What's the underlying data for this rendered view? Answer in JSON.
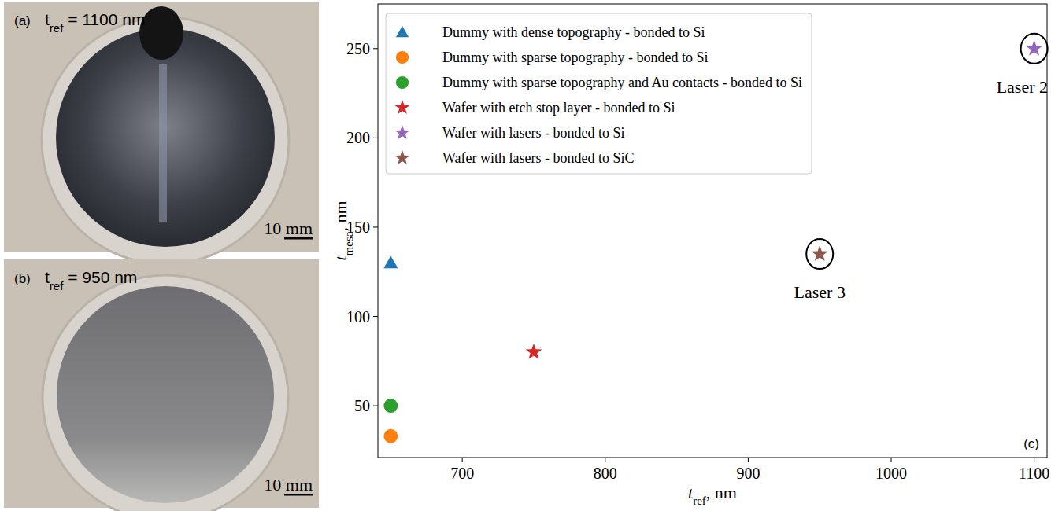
{
  "chart_data": {
    "type": "scatter",
    "x_label": {
      "main": "t",
      "sub": "ref",
      "rest": ", nm"
    },
    "y_label": {
      "main": "t",
      "sub": "mesa",
      "rest": ", nm"
    },
    "panel_letter": "(c)",
    "xlim": [
      641,
      1109
    ],
    "xticks": [
      700,
      800,
      900,
      1000,
      1100
    ],
    "ylim": [
      21,
      275
    ],
    "yticks": [
      50,
      100,
      150,
      200,
      250
    ],
    "grid": false,
    "legend": "upper left",
    "series": [
      {
        "name": "Dummy with dense topography - bonded to Si",
        "color": "#1f77b4",
        "marker": "triangle",
        "x": [
          650
        ],
        "values": [
          130
        ]
      },
      {
        "name": "Dummy with sparse topography - bonded to Si",
        "color": "#ff7f0e",
        "marker": "circle",
        "x": [
          650
        ],
        "values": [
          33
        ]
      },
      {
        "name": "Dummy with sparse topography and Au contacts - bonded to Si",
        "color": "#2ca02c",
        "marker": "circle",
        "x": [
          650
        ],
        "values": [
          50
        ]
      },
      {
        "name": "Wafer with etch stop layer - bonded to Si",
        "color": "#d62728",
        "marker": "star",
        "x": [
          750
        ],
        "values": [
          80
        ]
      },
      {
        "name": "Wafer with lasers - bonded to Si",
        "color": "#9467bd",
        "marker": "star",
        "x": [
          1100
        ],
        "values": [
          250
        ]
      },
      {
        "name": "Wafer with lasers - bonded to SiC",
        "color": "#8c564b",
        "marker": "star",
        "x": [
          950
        ],
        "values": [
          135
        ]
      }
    ],
    "annotations": [
      {
        "text": "Laser 2",
        "x": 1100,
        "y": 250
      },
      {
        "text": "Laser 3",
        "x": 950,
        "y": 135
      }
    ]
  },
  "photos": [
    {
      "letter": "(a)",
      "label": {
        "main": "t",
        "sub": "ref",
        "rest": " = 1100 nm"
      },
      "scale_bar": "10 mm"
    },
    {
      "letter": "(b)",
      "label": {
        "main": "t",
        "sub": "ref",
        "rest": " = 950 nm"
      },
      "scale_bar": "10 mm"
    }
  ]
}
